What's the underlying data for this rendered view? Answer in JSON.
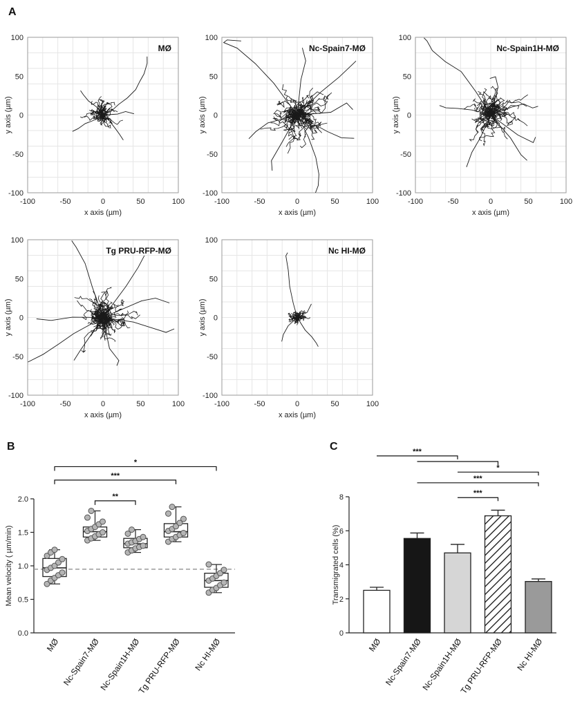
{
  "panels": {
    "a": "A",
    "b": "B",
    "c": "C"
  },
  "chart_data": [
    {
      "type": "scatter",
      "title": "MØ",
      "xlabel": "x axis (µm)",
      "ylabel": "y axis (µm)",
      "xlim": [
        -100,
        100
      ],
      "ylim": [
        -100,
        100
      ],
      "xticks": [
        "-100",
        "-50",
        "0",
        "50",
        "100"
      ],
      "yticks": [
        "100",
        "50",
        "0",
        "-50",
        "-100"
      ],
      "grid": true,
      "spread": 16,
      "tracks": 40,
      "seed": 11,
      "long_tracks": [
        [
          [
            0,
            0
          ],
          [
            12,
            5
          ],
          [
            22,
            12
          ],
          [
            32,
            22
          ],
          [
            42,
            32
          ],
          [
            50,
            42
          ],
          [
            56,
            52
          ],
          [
            60,
            66
          ],
          [
            58,
            76
          ]
        ],
        [
          [
            0,
            0
          ],
          [
            -8,
            -4
          ],
          [
            -16,
            -8
          ],
          [
            -24,
            -12
          ],
          [
            -34,
            -18
          ],
          [
            -40,
            -22
          ]
        ],
        [
          [
            0,
            0
          ],
          [
            8,
            -8
          ],
          [
            16,
            -16
          ],
          [
            22,
            -24
          ],
          [
            27,
            -31
          ]
        ],
        [
          [
            0,
            0
          ],
          [
            -10,
            10
          ],
          [
            -20,
            18
          ],
          [
            -26,
            25
          ],
          [
            -30,
            32
          ]
        ],
        [
          [
            0,
            0
          ],
          [
            18,
            2
          ],
          [
            30,
            4
          ],
          [
            40,
            2
          ]
        ]
      ]
    },
    {
      "type": "scatter",
      "title": "Nc-Spain7-MØ",
      "xlabel": "x axis (µm)",
      "ylabel": "y axis (µm)",
      "xlim": [
        -100,
        100
      ],
      "ylim": [
        -100,
        100
      ],
      "xticks": [
        "-100",
        "-50",
        "0",
        "50",
        "100"
      ],
      "yticks": [
        "100",
        "50",
        "0",
        "-50",
        "-100"
      ],
      "grid": true,
      "spread": 32,
      "tracks": 55,
      "seed": 23,
      "long_tracks": [
        [
          [
            0,
            0
          ],
          [
            -30,
            40
          ],
          [
            -55,
            65
          ],
          [
            -80,
            85
          ],
          [
            -98,
            92
          ],
          [
            -92,
            98
          ],
          [
            -75,
            96
          ]
        ],
        [
          [
            0,
            0
          ],
          [
            15,
            -30
          ],
          [
            25,
            -55
          ],
          [
            30,
            -75
          ],
          [
            28,
            -92
          ],
          [
            25,
            -100
          ]
        ],
        [
          [
            0,
            0
          ],
          [
            30,
            30
          ],
          [
            55,
            50
          ],
          [
            72,
            62
          ],
          [
            78,
            70
          ]
        ],
        [
          [
            0,
            0
          ],
          [
            -40,
            -10
          ],
          [
            -55,
            -20
          ],
          [
            -65,
            -30
          ]
        ],
        [
          [
            0,
            0
          ],
          [
            45,
            5
          ],
          [
            65,
            15
          ],
          [
            75,
            8
          ]
        ],
        [
          [
            0,
            0
          ],
          [
            5,
            45
          ],
          [
            12,
            70
          ],
          [
            8,
            85
          ]
        ],
        [
          [
            0,
            0
          ],
          [
            -20,
            -35
          ],
          [
            -35,
            -60
          ],
          [
            -32,
            -72
          ]
        ],
        [
          [
            0,
            0
          ],
          [
            40,
            -20
          ],
          [
            60,
            -30
          ],
          [
            75,
            -30
          ]
        ]
      ]
    },
    {
      "type": "scatter",
      "title": "Nc-Spain1H-MØ",
      "xlabel": "x axis (µm)",
      "ylabel": "y axis (µm)",
      "xlim": [
        -100,
        100
      ],
      "ylim": [
        -100,
        100
      ],
      "xticks": [
        "-100",
        "-50",
        "0",
        "50",
        "100"
      ],
      "yticks": [
        "100",
        "50",
        "0",
        "-50",
        "-100"
      ],
      "grid": true,
      "spread": 26,
      "tracks": 55,
      "seed": 37,
      "long_tracks": [
        [
          [
            0,
            0
          ],
          [
            -20,
            30
          ],
          [
            -40,
            55
          ],
          [
            -60,
            70
          ],
          [
            -78,
            82
          ],
          [
            -85,
            95
          ],
          [
            -88,
            100
          ]
        ],
        [
          [
            0,
            0
          ],
          [
            30,
            10
          ],
          [
            45,
            15
          ],
          [
            55,
            10
          ],
          [
            62,
            12
          ]
        ],
        [
          [
            0,
            0
          ],
          [
            -25,
            5
          ],
          [
            -45,
            8
          ],
          [
            -58,
            10
          ],
          [
            -68,
            12
          ]
        ],
        [
          [
            0,
            0
          ],
          [
            -15,
            -30
          ],
          [
            -25,
            -48
          ],
          [
            -32,
            -68
          ]
        ],
        [
          [
            0,
            0
          ],
          [
            25,
            -30
          ],
          [
            40,
            -50
          ],
          [
            48,
            -58
          ]
        ],
        [
          [
            0,
            0
          ],
          [
            10,
            35
          ],
          [
            5,
            48
          ],
          [
            -2,
            48
          ]
        ],
        [
          [
            0,
            0
          ],
          [
            35,
            -25
          ],
          [
            55,
            -35
          ],
          [
            60,
            -28
          ]
        ]
      ]
    },
    {
      "type": "scatter",
      "title": "Tg PRU-RFP-MØ",
      "xlabel": "x axis (µm)",
      "ylabel": "y axis (µm)",
      "xlim": [
        -100,
        100
      ],
      "ylim": [
        -100,
        100
      ],
      "xticks": [
        "-100",
        "-50",
        "0",
        "50",
        "100"
      ],
      "yticks": [
        "100",
        "50",
        "0",
        "-50",
        "-100"
      ],
      "grid": true,
      "spread": 28,
      "tracks": 60,
      "seed": 51,
      "long_tracks": [
        [
          [
            0,
            0
          ],
          [
            -40,
            -20
          ],
          [
            -60,
            -35
          ],
          [
            -78,
            -48
          ],
          [
            -100,
            -58
          ]
        ],
        [
          [
            0,
            0
          ],
          [
            -40,
            0
          ],
          [
            -70,
            -5
          ],
          [
            -88,
            -2
          ]
        ],
        [
          [
            0,
            0
          ],
          [
            -15,
            40
          ],
          [
            -25,
            70
          ],
          [
            -35,
            90
          ],
          [
            -42,
            100
          ]
        ],
        [
          [
            0,
            0
          ],
          [
            30,
            40
          ],
          [
            48,
            65
          ],
          [
            55,
            80
          ]
        ],
        [
          [
            0,
            0
          ],
          [
            40,
            -5
          ],
          [
            65,
            -15
          ],
          [
            85,
            -20
          ],
          [
            95,
            -14
          ]
        ],
        [
          [
            0,
            0
          ],
          [
            10,
            -40
          ],
          [
            20,
            -55
          ],
          [
            18,
            -62
          ]
        ],
        [
          [
            0,
            0
          ],
          [
            50,
            20
          ],
          [
            70,
            25
          ],
          [
            88,
            18
          ]
        ],
        [
          [
            0,
            0
          ],
          [
            -30,
            -40
          ],
          [
            -40,
            -55
          ]
        ]
      ]
    },
    {
      "type": "scatter",
      "title": "Nc HI-MØ",
      "xlabel": "x axis (µm)",
      "ylabel": "y axis (µm)",
      "xlim": [
        -100,
        100
      ],
      "ylim": [
        -100,
        100
      ],
      "xticks": [
        "-100",
        "-50",
        "0",
        "50",
        "100"
      ],
      "yticks": [
        "100",
        "50",
        "0",
        "-50",
        "-100"
      ],
      "grid": true,
      "spread": 10,
      "tracks": 35,
      "seed": 67,
      "long_tracks": [
        [
          [
            0,
            0
          ],
          [
            -5,
            20
          ],
          [
            -10,
            40
          ],
          [
            -12,
            60
          ],
          [
            -15,
            78
          ],
          [
            -12,
            82
          ]
        ],
        [
          [
            0,
            0
          ],
          [
            10,
            -15
          ],
          [
            18,
            -25
          ],
          [
            24,
            -32
          ],
          [
            28,
            -36
          ]
        ],
        [
          [
            0,
            0
          ],
          [
            -12,
            -12
          ],
          [
            -18,
            -22
          ],
          [
            -20,
            -30
          ]
        ],
        [
          [
            0,
            0
          ],
          [
            12,
            8
          ],
          [
            18,
            18
          ]
        ]
      ]
    },
    {
      "type": "box",
      "ylabel": "Mean velocity ( µm/min)",
      "ylim": [
        0.0,
        2.0
      ],
      "yticks": [
        "2.0",
        "1.5",
        "1.0",
        "0.5",
        "0.0"
      ],
      "reference_line": 0.95,
      "categories": [
        "MØ",
        "Nc-Spain7-MØ",
        "Nc-Spain1H-MØ",
        "Tg PRU-RFP-MØ",
        "Nc HI-MØ"
      ],
      "boxes": [
        {
          "min": 0.73,
          "q1": 0.84,
          "median": 0.97,
          "q3": 1.11,
          "max": 1.24,
          "points": [
            0.73,
            0.78,
            0.82,
            0.86,
            0.9,
            0.94,
            0.97,
            1.0,
            1.05,
            1.1,
            1.15,
            1.2,
            1.24
          ]
        },
        {
          "min": 1.38,
          "q1": 1.43,
          "median": 1.51,
          "q3": 1.58,
          "max": 1.82,
          "points": [
            1.38,
            1.41,
            1.44,
            1.47,
            1.5,
            1.52,
            1.55,
            1.58,
            1.62,
            1.66,
            1.72,
            1.82
          ]
        },
        {
          "min": 1.2,
          "q1": 1.27,
          "median": 1.33,
          "q3": 1.41,
          "max": 1.54,
          "points": [
            1.2,
            1.23,
            1.26,
            1.28,
            1.3,
            1.33,
            1.35,
            1.37,
            1.4,
            1.43,
            1.48,
            1.54
          ]
        },
        {
          "min": 1.36,
          "q1": 1.43,
          "median": 1.51,
          "q3": 1.63,
          "max": 1.88,
          "points": [
            1.36,
            1.4,
            1.43,
            1.46,
            1.49,
            1.52,
            1.55,
            1.59,
            1.64,
            1.7,
            1.78,
            1.88
          ]
        },
        {
          "min": 0.6,
          "q1": 0.68,
          "median": 0.78,
          "q3": 0.89,
          "max": 1.02,
          "points": [
            0.6,
            0.64,
            0.67,
            0.71,
            0.75,
            0.78,
            0.81,
            0.85,
            0.89,
            0.94,
            1.02
          ]
        }
      ],
      "brackets": [
        {
          "from": 0,
          "to": 4,
          "value": 2.48,
          "label": "*"
        },
        {
          "from": 0,
          "to": 3,
          "value": 2.28,
          "label": "***"
        },
        {
          "from": 1,
          "to": 2,
          "value": 1.97,
          "label": "**"
        }
      ]
    },
    {
      "type": "bar",
      "ylabel": "Transmigrated cells (%)",
      "ylim": [
        0,
        8
      ],
      "yticks": [
        "8",
        "6",
        "4",
        "2",
        "0"
      ],
      "categories": [
        "MØ",
        "Nc-Spain7-MØ",
        "Nc-Spain1H-MØ",
        "Tg PRU-RFP-MØ",
        "Nc HI-MØ"
      ],
      "values": [
        2.5,
        5.55,
        4.7,
        6.88,
        3.02
      ],
      "errors": [
        0.18,
        0.32,
        0.5,
        0.33,
        0.15
      ],
      "fills": [
        "#ffffff",
        "#161616",
        "#d6d6d6",
        "hatch",
        "#9a9a9a"
      ],
      "brackets": [
        {
          "from": 0,
          "to": 2,
          "value": 10.4,
          "label": "***"
        },
        {
          "from": 1,
          "to": 3,
          "value": 10.07,
          "label": ""
        },
        {
          "from": 2,
          "to": 4,
          "value": 9.45,
          "label": "*"
        },
        {
          "from": 1,
          "to": 4,
          "value": 8.82,
          "label": "***"
        },
        {
          "from": 2,
          "to": 3,
          "value": 7.95,
          "label": "***"
        }
      ]
    }
  ]
}
